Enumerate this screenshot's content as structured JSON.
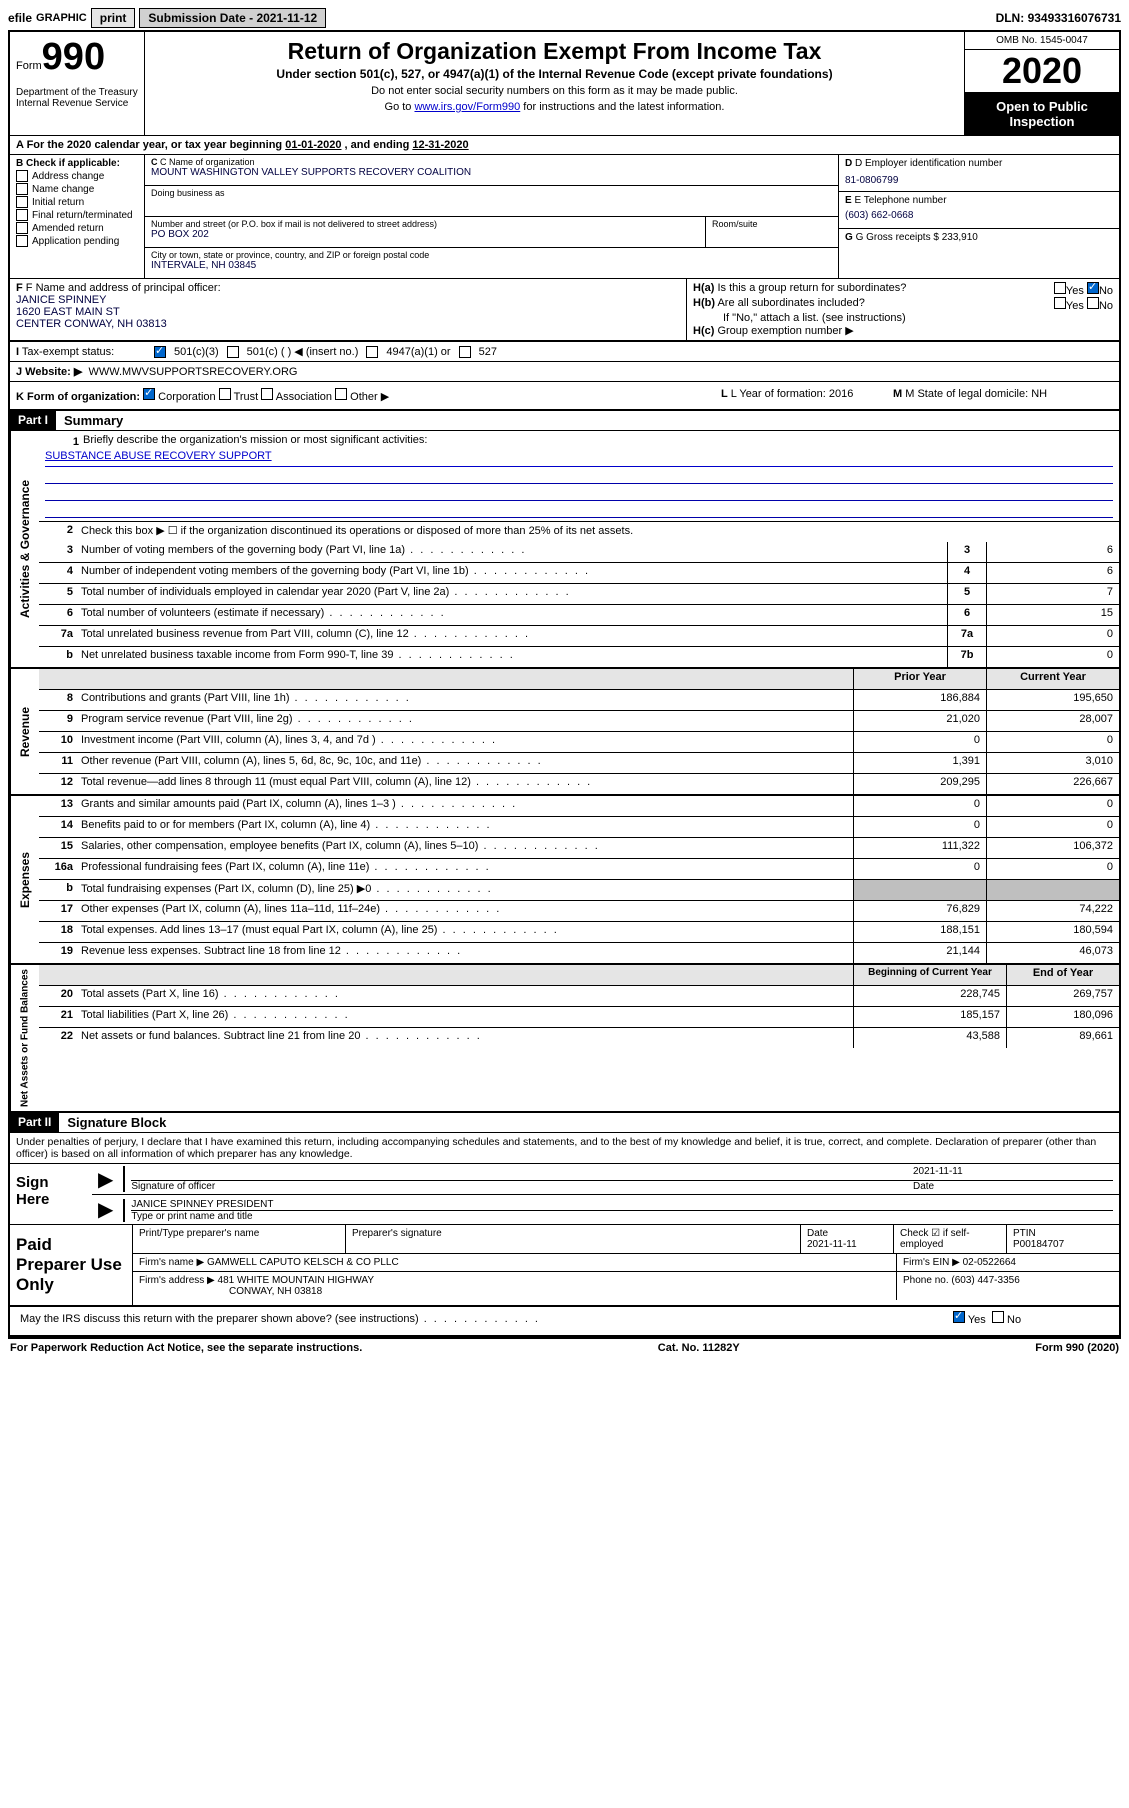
{
  "header": {
    "efile": "efile",
    "graphic": "GRAPHIC",
    "print": "print",
    "sub_date_label": "Submission Date - ",
    "sub_date": "2021-11-12",
    "dln_label": "DLN: ",
    "dln": "93493316076731"
  },
  "form": {
    "form_word": "Form",
    "form_num": "990",
    "dept": "Department of the Treasury\nInternal Revenue Service",
    "title": "Return of Organization Exempt From Income Tax",
    "sub": "Under section 501(c), 527, or 4947(a)(1) of the Internal Revenue Code (except private foundations)",
    "instr1": "Do not enter social security numbers on this form as it may be made public.",
    "instr2_a": "Go to ",
    "instr2_link": "www.irs.gov/Form990",
    "instr2_b": " for instructions and the latest information.",
    "omb": "OMB No. 1545-0047",
    "year": "2020",
    "open": "Open to Public Inspection"
  },
  "line_a": {
    "prefix": "A For the 2020 calendar year, or tax year beginning ",
    "begin": "01-01-2020",
    "mid": " , and ending ",
    "end": "12-31-2020"
  },
  "box_b": {
    "header": "B Check if applicable:",
    "items": [
      "Address change",
      "Name change",
      "Initial return",
      "Final return/terminated",
      "Amended return",
      "Application pending"
    ]
  },
  "box_c": {
    "c_label": "C Name of organization",
    "c_name": "MOUNT WASHINGTON VALLEY SUPPORTS RECOVERY COALITION",
    "dba_label": "Doing business as",
    "addr_label": "Number and street (or P.O. box if mail is not delivered to street address)",
    "addr": "PO BOX 202",
    "room_label": "Room/suite",
    "city_label": "City or town, state or province, country, and ZIP or foreign postal code",
    "city": "INTERVALE, NH  03845"
  },
  "box_d": {
    "d_label": "D Employer identification number",
    "d_val": "81-0806799",
    "e_label": "E Telephone number",
    "e_val": "(603) 662-0668",
    "g_label": "G Gross receipts $ ",
    "g_val": "233,910"
  },
  "box_f": {
    "f_label": "F Name and address of principal officer:",
    "name": "JANICE SPINNEY",
    "addr1": "1620 EAST MAIN ST",
    "addr2": "CENTER CONWAY, NH  03813"
  },
  "box_h": {
    "ha": "Is this a group return for subordinates?",
    "hb": "Are all subordinates included?",
    "hb_note": "If \"No,\" attach a list. (see instructions)",
    "hc": "Group exemption number ▶",
    "yes": "Yes",
    "no": "No"
  },
  "tax_status": {
    "label": "Tax-exempt status:",
    "opt1": "501(c)(3)",
    "opt2": "501(c) (   ) ◀ (insert no.)",
    "opt3": "4947(a)(1) or",
    "opt4": "527"
  },
  "website": {
    "j_label": "J   Website: ▶",
    "j_val": "WWW.MWVSUPPORTSRECOVERY.ORG"
  },
  "k_row": {
    "k_label": "K Form of organization:",
    "opts": [
      "Corporation",
      "Trust",
      "Association",
      "Other ▶"
    ],
    "l_label": "L Year of formation: ",
    "l_val": "2016",
    "m_label": "M State of legal domicile: ",
    "m_val": "NH"
  },
  "part1": {
    "header": "Part I",
    "title": "Summary",
    "side_gov": "Activities & Governance",
    "side_rev": "Revenue",
    "side_exp": "Expenses",
    "side_net": "Net Assets or Fund Balances",
    "q1_label": "Briefly describe the organization's mission or most significant activities:",
    "q1_val": "SUBSTANCE ABUSE RECOVERY SUPPORT",
    "q2": "Check this box ▶ ☐  if the organization discontinued its operations or disposed of more than 25% of its net assets.",
    "rows_gov": [
      {
        "n": "3",
        "t": "Number of voting members of the governing body (Part VI, line 1a)",
        "box": "3",
        "v": "6"
      },
      {
        "n": "4",
        "t": "Number of independent voting members of the governing body (Part VI, line 1b)",
        "box": "4",
        "v": "6"
      },
      {
        "n": "5",
        "t": "Total number of individuals employed in calendar year 2020 (Part V, line 2a)",
        "box": "5",
        "v": "7"
      },
      {
        "n": "6",
        "t": "Total number of volunteers (estimate if necessary)",
        "box": "6",
        "v": "15"
      },
      {
        "n": "7a",
        "t": "Total unrelated business revenue from Part VIII, column (C), line 12",
        "box": "7a",
        "v": "0"
      },
      {
        "n": "b",
        "t": "Net unrelated business taxable income from Form 990-T, line 39",
        "box": "7b",
        "v": "0"
      }
    ],
    "col_prior": "Prior Year",
    "col_curr": "Current Year",
    "rows_rev": [
      {
        "n": "8",
        "t": "Contributions and grants (Part VIII, line 1h)",
        "p": "186,884",
        "c": "195,650"
      },
      {
        "n": "9",
        "t": "Program service revenue (Part VIII, line 2g)",
        "p": "21,020",
        "c": "28,007"
      },
      {
        "n": "10",
        "t": "Investment income (Part VIII, column (A), lines 3, 4, and 7d )",
        "p": "0",
        "c": "0"
      },
      {
        "n": "11",
        "t": "Other revenue (Part VIII, column (A), lines 5, 6d, 8c, 9c, 10c, and 11e)",
        "p": "1,391",
        "c": "3,010"
      },
      {
        "n": "12",
        "t": "Total revenue—add lines 8 through 11 (must equal Part VIII, column (A), line 12)",
        "p": "209,295",
        "c": "226,667"
      }
    ],
    "rows_exp": [
      {
        "n": "13",
        "t": "Grants and similar amounts paid (Part IX, column (A), lines 1–3 )",
        "p": "0",
        "c": "0"
      },
      {
        "n": "14",
        "t": "Benefits paid to or for members (Part IX, column (A), line 4)",
        "p": "0",
        "c": "0"
      },
      {
        "n": "15",
        "t": "Salaries, other compensation, employee benefits (Part IX, column (A), lines 5–10)",
        "p": "111,322",
        "c": "106,372"
      },
      {
        "n": "16a",
        "t": "Professional fundraising fees (Part IX, column (A), line 11e)",
        "p": "0",
        "c": "0"
      },
      {
        "n": "b",
        "t": "Total fundraising expenses (Part IX, column (D), line 25) ▶0",
        "p": "",
        "c": "",
        "grey": true
      },
      {
        "n": "17",
        "t": "Other expenses (Part IX, column (A), lines 11a–11d, 11f–24e)",
        "p": "76,829",
        "c": "74,222"
      },
      {
        "n": "18",
        "t": "Total expenses. Add lines 13–17 (must equal Part IX, column (A), line 25)",
        "p": "188,151",
        "c": "180,594"
      },
      {
        "n": "19",
        "t": "Revenue less expenses. Subtract line 18 from line 12",
        "p": "21,144",
        "c": "46,073"
      }
    ],
    "col_begin": "Beginning of Current Year",
    "col_end": "End of Year",
    "rows_net": [
      {
        "n": "20",
        "t": "Total assets (Part X, line 16)",
        "p": "228,745",
        "c": "269,757"
      },
      {
        "n": "21",
        "t": "Total liabilities (Part X, line 26)",
        "p": "185,157",
        "c": "180,096"
      },
      {
        "n": "22",
        "t": "Net assets or fund balances. Subtract line 21 from line 20",
        "p": "43,588",
        "c": "89,661"
      }
    ]
  },
  "part2": {
    "header": "Part II",
    "title": "Signature Block",
    "penalty": "Under penalties of perjury, I declare that I have examined this return, including accompanying schedules and statements, and to the best of my knowledge and belief, it is true, correct, and complete. Declaration of preparer (other than officer) is based on all information of which preparer has any knowledge.",
    "sign_here": "Sign Here",
    "sig_label": "Signature of officer",
    "sig_date_label": "Date",
    "sig_date": "2021-11-11",
    "name_label": "Type or print name and title",
    "name_val": "JANICE SPINNEY PRESIDENT",
    "paid": "Paid Preparer Use Only",
    "prep_name_label": "Print/Type preparer's name",
    "prep_sig_label": "Preparer's signature",
    "prep_date_label": "Date",
    "prep_date": "2021-11-11",
    "check_label": "Check ☑ if self-employed",
    "ptin_label": "PTIN",
    "ptin": "P00184707",
    "firm_name_label": "Firm's name    ▶ ",
    "firm_name": "GAMWELL CAPUTO KELSCH & CO PLLC",
    "firm_ein_label": "Firm's EIN ▶ ",
    "firm_ein": "02-0522664",
    "firm_addr_label": "Firm's address ▶ ",
    "firm_addr1": "481 WHITE MOUNTAIN HIGHWAY",
    "firm_addr2": "CONWAY, NH  03818",
    "phone_label": "Phone no. ",
    "phone": "(603) 447-3356",
    "discuss": "May the IRS discuss this return with the preparer shown above? (see instructions)"
  },
  "footer": {
    "left": "For Paperwork Reduction Act Notice, see the separate instructions.",
    "mid": "Cat. No. 11282Y",
    "right": "Form 990 (2020)"
  }
}
